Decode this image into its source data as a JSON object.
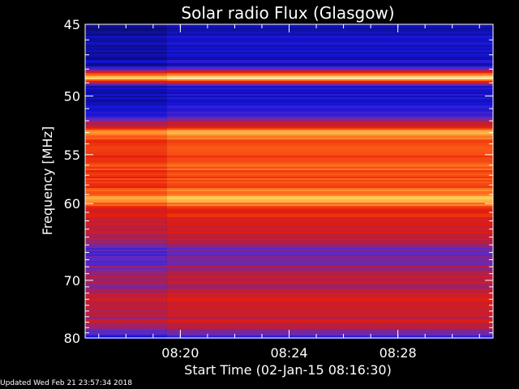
{
  "chart_data": {
    "type": "heatmap",
    "title": "Solar radio Flux (Glasgow)",
    "xlabel": "Start Time (02-Jan-15 08:16:30)",
    "ylabel": "Frequency [MHz]",
    "x_ticks": [
      "08:20",
      "08:24",
      "08:28"
    ],
    "x_tick_minutes": [
      3.5,
      7.5,
      11.5
    ],
    "x_range_minutes": [
      0,
      15
    ],
    "y_ticks": [
      45,
      50,
      55,
      60,
      70,
      80
    ],
    "y_range": [
      45,
      80
    ],
    "y_scale": "reciprocal",
    "colormap": [
      "#0a0a6e",
      "#1414d8",
      "#5a2ac8",
      "#b41e46",
      "#e61e0a",
      "#ff6419",
      "#ffc850",
      "#ffffff"
    ],
    "frequency_profile": [
      {
        "f": 45.0,
        "level": 0.1
      },
      {
        "f": 46.5,
        "level": 0.14
      },
      {
        "f": 47.8,
        "level": 0.12
      },
      {
        "f": 48.6,
        "level": 0.97
      },
      {
        "f": 49.3,
        "level": 0.15
      },
      {
        "f": 50.5,
        "level": 0.13
      },
      {
        "f": 51.8,
        "level": 0.3
      },
      {
        "f": 52.5,
        "level": 0.55
      },
      {
        "f": 53.0,
        "level": 0.86
      },
      {
        "f": 54.0,
        "level": 0.62
      },
      {
        "f": 56.0,
        "level": 0.7
      },
      {
        "f": 58.0,
        "level": 0.64
      },
      {
        "f": 59.4,
        "level": 0.85
      },
      {
        "f": 61.0,
        "level": 0.58
      },
      {
        "f": 62.5,
        "level": 0.55
      },
      {
        "f": 64.5,
        "level": 0.48
      },
      {
        "f": 66.0,
        "level": 0.28
      },
      {
        "f": 67.5,
        "level": 0.34
      },
      {
        "f": 69.0,
        "level": 0.48
      },
      {
        "f": 71.0,
        "level": 0.4
      },
      {
        "f": 73.0,
        "level": 0.52
      },
      {
        "f": 75.0,
        "level": 0.45
      },
      {
        "f": 77.0,
        "level": 0.5
      },
      {
        "f": 79.0,
        "level": 0.3
      },
      {
        "f": 80.0,
        "level": 0.22
      }
    ],
    "time_step_minute": 3.0,
    "step_level_offset": 0.05
  },
  "footer": {
    "updated": "Updated Wed Feb 21 23:57:34 2018"
  }
}
